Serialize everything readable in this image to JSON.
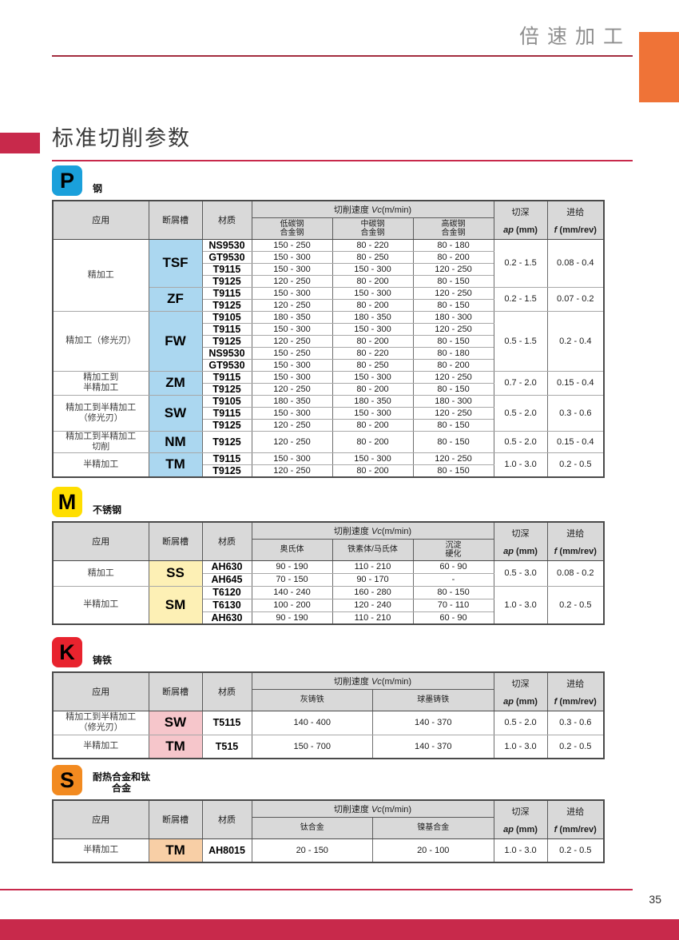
{
  "header": {
    "title": "倍速加工",
    "page_number": "35"
  },
  "title": {
    "text": "标准切削参数"
  },
  "colors": {
    "accent_red": "#c8294b",
    "header_line": "#a32c3f",
    "orange_rect": "#ef7337"
  },
  "labels": {
    "app": "应用",
    "chipbreaker": "断屑槽",
    "material": "材质",
    "vc_prefix": "切削速度 ",
    "vc_italic": "Vc",
    "vc_suffix": "(m/min)",
    "depth": "切深",
    "depth_var": "ap",
    "depth_unit": " (mm)",
    "feed": "进给",
    "feed_var": "f",
    "feed_unit": " (mm/rev)"
  },
  "sections": [
    {
      "id": "p",
      "badge": "P",
      "label": "钢",
      "badge_color": "#1aa0db",
      "chip_bg": "#abd7f0",
      "vc_cols": [
        "低碳钢\n合金钢",
        "中碳钢\n合金钢",
        "高碳钢\n合金钢"
      ],
      "blocks": [
        {
          "app": "精加工",
          "groups": [
            {
              "chip": "TSF",
              "ap": "0.2 - 1.5",
              "f": "0.08 - 0.4",
              "materials": [
                {
                  "name": "NS9530",
                  "vc": [
                    "150 - 250",
                    "80 - 220",
                    "80 - 180"
                  ]
                },
                {
                  "name": "GT9530",
                  "vc": [
                    "150 - 300",
                    "80 - 250",
                    "80 - 200"
                  ]
                },
                {
                  "name": "T9115",
                  "vc": [
                    "150 - 300",
                    "150 - 300",
                    "120 - 250"
                  ]
                },
                {
                  "name": "T9125",
                  "vc": [
                    "120 - 250",
                    "80 - 200",
                    "80 - 150"
                  ]
                }
              ]
            },
            {
              "chip": "ZF",
              "ap": "0.2 - 1.5",
              "f": "0.07 - 0.2",
              "materials": [
                {
                  "name": "T9115",
                  "vc": [
                    "150 - 300",
                    "150 - 300",
                    "120 - 250"
                  ]
                },
                {
                  "name": "T9125",
                  "vc": [
                    "120 - 250",
                    "80 - 200",
                    "80 - 150"
                  ]
                }
              ]
            }
          ]
        },
        {
          "app": "精加工（修光刃）",
          "groups": [
            {
              "chip": "FW",
              "ap": "0.5 - 1.5",
              "f": "0.2 - 0.4",
              "materials": [
                {
                  "name": "T9105",
                  "vc": [
                    "180 - 350",
                    "180 - 350",
                    "180 - 300"
                  ]
                },
                {
                  "name": "T9115",
                  "vc": [
                    "150 - 300",
                    "150 - 300",
                    "120 - 250"
                  ]
                },
                {
                  "name": "T9125",
                  "vc": [
                    "120 - 250",
                    "80 - 200",
                    "80 - 150"
                  ]
                },
                {
                  "name": "NS9530",
                  "vc": [
                    "150 - 250",
                    "80 - 220",
                    "80 - 180"
                  ]
                },
                {
                  "name": "GT9530",
                  "vc": [
                    "150 - 300",
                    "80 - 250",
                    "80 - 200"
                  ]
                }
              ]
            }
          ]
        },
        {
          "app": "精加工到\n半精加工",
          "groups": [
            {
              "chip": "ZM",
              "ap": "0.7 - 2.0",
              "f": "0.15 - 0.4",
              "materials": [
                {
                  "name": "T9115",
                  "vc": [
                    "150 - 300",
                    "150 - 300",
                    "120 - 250"
                  ]
                },
                {
                  "name": "T9125",
                  "vc": [
                    "120 - 250",
                    "80 - 200",
                    "80 - 150"
                  ]
                }
              ]
            }
          ]
        },
        {
          "app": "精加工到半精加工\n（修光刃）",
          "groups": [
            {
              "chip": "SW",
              "ap": "0.5 - 2.0",
              "f": "0.3 - 0.6",
              "materials": [
                {
                  "name": "T9105",
                  "vc": [
                    "180 - 350",
                    "180 - 350",
                    "180 - 300"
                  ]
                },
                {
                  "name": "T9115",
                  "vc": [
                    "150 - 300",
                    "150 - 300",
                    "120 - 250"
                  ]
                },
                {
                  "name": "T9125",
                  "vc": [
                    "120 - 250",
                    "80 - 200",
                    "80 - 150"
                  ]
                }
              ]
            }
          ]
        },
        {
          "app": "精加工到半精加工\n切削",
          "groups": [
            {
              "chip": "NM",
              "ap": "0.5 - 2.0",
              "f": "0.15 - 0.4",
              "materials": [
                {
                  "name": "T9125",
                  "vc": [
                    "120 - 250",
                    "80 - 200",
                    "80 - 150"
                  ]
                }
              ]
            }
          ]
        },
        {
          "app": "半精加工",
          "groups": [
            {
              "chip": "TM",
              "ap": "1.0 - 3.0",
              "f": "0.2 - 0.5",
              "materials": [
                {
                  "name": "T9115",
                  "vc": [
                    "150 - 300",
                    "150 - 300",
                    "120 - 250"
                  ]
                },
                {
                  "name": "T9125",
                  "vc": [
                    "120 - 250",
                    "80 - 200",
                    "80 - 150"
                  ]
                }
              ]
            }
          ]
        }
      ]
    },
    {
      "id": "m",
      "badge": "M",
      "label": "不锈钢",
      "badge_color": "#ffde00",
      "chip_bg": "#fdf0b5",
      "vc_cols": [
        "奥氏体",
        "铁素体/马氏体",
        "沉淀\n硬化"
      ],
      "blocks": [
        {
          "app": "精加工",
          "groups": [
            {
              "chip": "SS",
              "ap": "0.5 - 3.0",
              "f": "0.08 - 0.2",
              "materials": [
                {
                  "name": "AH630",
                  "vc": [
                    "90 - 190",
                    "110 - 210",
                    "60 - 90"
                  ]
                },
                {
                  "name": "AH645",
                  "vc": [
                    "70 - 150",
                    "90 - 170",
                    "-"
                  ]
                }
              ]
            }
          ]
        },
        {
          "app": "半精加工",
          "groups": [
            {
              "chip": "SM",
              "ap": "1.0 - 3.0",
              "f": "0.2 - 0.5",
              "materials": [
                {
                  "name": "T6120",
                  "vc": [
                    "140 - 240",
                    "160 - 280",
                    "80 - 150"
                  ]
                },
                {
                  "name": "T6130",
                  "vc": [
                    "100 - 200",
                    "120 - 240",
                    "70 - 110"
                  ]
                },
                {
                  "name": "AH630",
                  "vc": [
                    "90 - 190",
                    "110 - 210",
                    "60 - 90"
                  ]
                }
              ]
            }
          ]
        }
      ]
    },
    {
      "id": "k",
      "badge": "K",
      "label": "铸铁",
      "badge_color": "#e8232e",
      "chip_bg": "#f6c6cb",
      "vc_cols": [
        "灰铸铁",
        "球墨铸铁"
      ],
      "blocks": [
        {
          "app": "精加工到半精加工\n（修光刃）",
          "groups": [
            {
              "chip": "SW",
              "ap": "0.5 - 2.0",
              "f": "0.3 - 0.6",
              "materials": [
                {
                  "name": "T5115",
                  "vc": [
                    "140 - 400",
                    "140 - 370"
                  ]
                }
              ]
            }
          ]
        },
        {
          "app": "半精加工",
          "groups": [
            {
              "chip": "TM",
              "ap": "1.0 - 3.0",
              "f": "0.2 - 0.5",
              "materials": [
                {
                  "name": "T515",
                  "vc": [
                    "150 - 700",
                    "140 - 370"
                  ]
                }
              ]
            }
          ]
        }
      ]
    },
    {
      "id": "s",
      "badge": "S",
      "label": "耐热合金和钛\n合金",
      "badge_color": "#f28a20",
      "chip_bg": "#f8cfa6",
      "vc_cols": [
        "钛合金",
        "镍基合金"
      ],
      "blocks": [
        {
          "app": "半精加工",
          "groups": [
            {
              "chip": "TM",
              "ap": "1.0 - 3.0",
              "f": "0.2 - 0.5",
              "materials": [
                {
                  "name": "AH8015",
                  "vc": [
                    "20 - 150",
                    "20 - 100"
                  ]
                }
              ]
            }
          ]
        }
      ]
    }
  ]
}
